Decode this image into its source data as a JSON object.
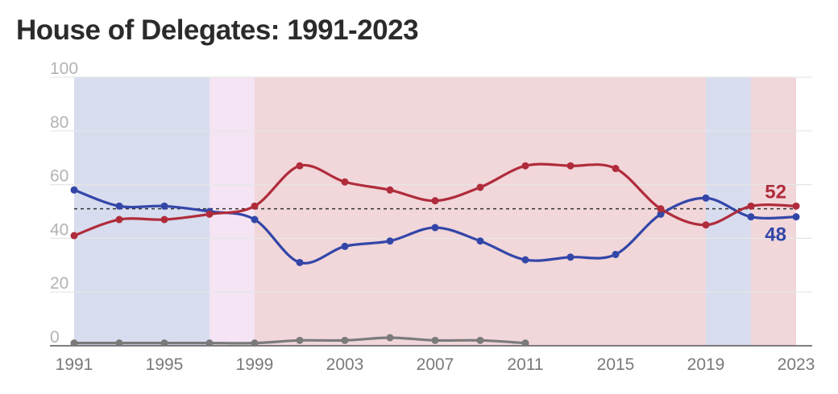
{
  "colors": {
    "dem": "#3346a8",
    "rep": "#b02c3b",
    "ind": "#7a7a7a",
    "dem_band": "#d8dcef",
    "rep_band": "#f1d6da",
    "split_band": "#f4e4f4",
    "gridline": "#e6e6e6",
    "majority_line": "#333333"
  },
  "chart_data": {
    "type": "line",
    "title": "House of Delegates: 1991-2023",
    "xlabel": "",
    "ylabel": "",
    "xlim": [
      1991,
      2023
    ],
    "ylim": [
      0,
      100
    ],
    "grid": true,
    "y_ticks": [
      0,
      20,
      40,
      60,
      80,
      100
    ],
    "x_ticks": [
      1991,
      1995,
      1999,
      2003,
      2007,
      2011,
      2015,
      2019,
      2023
    ],
    "majority_reference": 51,
    "control_bands": [
      {
        "start": 1991,
        "end": 1997,
        "party": "dem"
      },
      {
        "start": 1997,
        "end": 1999,
        "party": "split"
      },
      {
        "start": 1999,
        "end": 2019,
        "party": "rep"
      },
      {
        "start": 2019,
        "end": 2021,
        "party": "dem"
      },
      {
        "start": 2021,
        "end": 2023,
        "party": "rep"
      }
    ],
    "x": [
      1991,
      1993,
      1995,
      1997,
      1999,
      2001,
      2003,
      2005,
      2007,
      2009,
      2011,
      2013,
      2015,
      2017,
      2019,
      2021,
      2023
    ],
    "series": [
      {
        "key": "rep",
        "values": [
          41,
          47,
          47,
          49,
          52,
          67,
          61,
          58,
          54,
          59,
          67,
          67,
          66,
          51,
          45,
          52,
          52
        ],
        "end_label": "52"
      },
      {
        "key": "dem",
        "values": [
          58,
          52,
          52,
          50,
          47,
          31,
          37,
          39,
          44,
          39,
          32,
          33,
          34,
          49,
          55,
          48,
          48
        ],
        "end_label": "48"
      },
      {
        "key": "ind",
        "values": [
          1,
          1,
          1,
          1,
          1,
          2,
          2,
          3,
          2,
          2,
          1,
          null,
          null,
          null,
          null,
          null,
          null
        ]
      }
    ]
  }
}
